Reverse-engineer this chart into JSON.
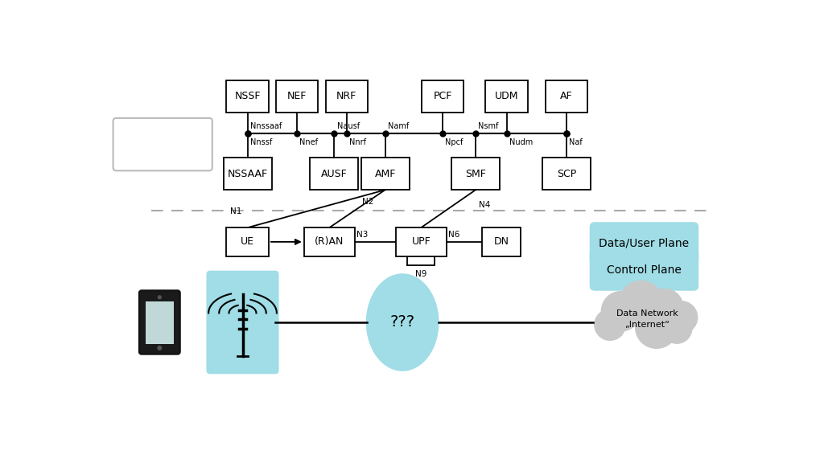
{
  "bg_color": "#ffffff",
  "top_row_names": [
    "NSSF",
    "NEF",
    "NRF",
    "PCF",
    "UDM",
    "AF"
  ],
  "top_row_labels": [
    "Nnssf",
    "Nnef",
    "Nnrf",
    "Npcf",
    "Nudm",
    "Naf"
  ],
  "mid_row_names": [
    "NSSAAF",
    "AUSF",
    "AMF",
    "SMF",
    "SCP"
  ],
  "mid_row_labels": [
    "Nnssaaf",
    "Nausf",
    "Namf",
    "Nsmf",
    ""
  ],
  "bot_names": [
    "UE",
    "(R)AN",
    "UPF",
    "DN"
  ],
  "cyan": "#a0dde6",
  "cloud_gray": "#c8c8c8",
  "dashed_gray": "#aaaaaa",
  "control_plane_label": "Control Plane",
  "data_plane_label": "Data/User Plane",
  "data_network_label": "Data Network\n„Internet“"
}
